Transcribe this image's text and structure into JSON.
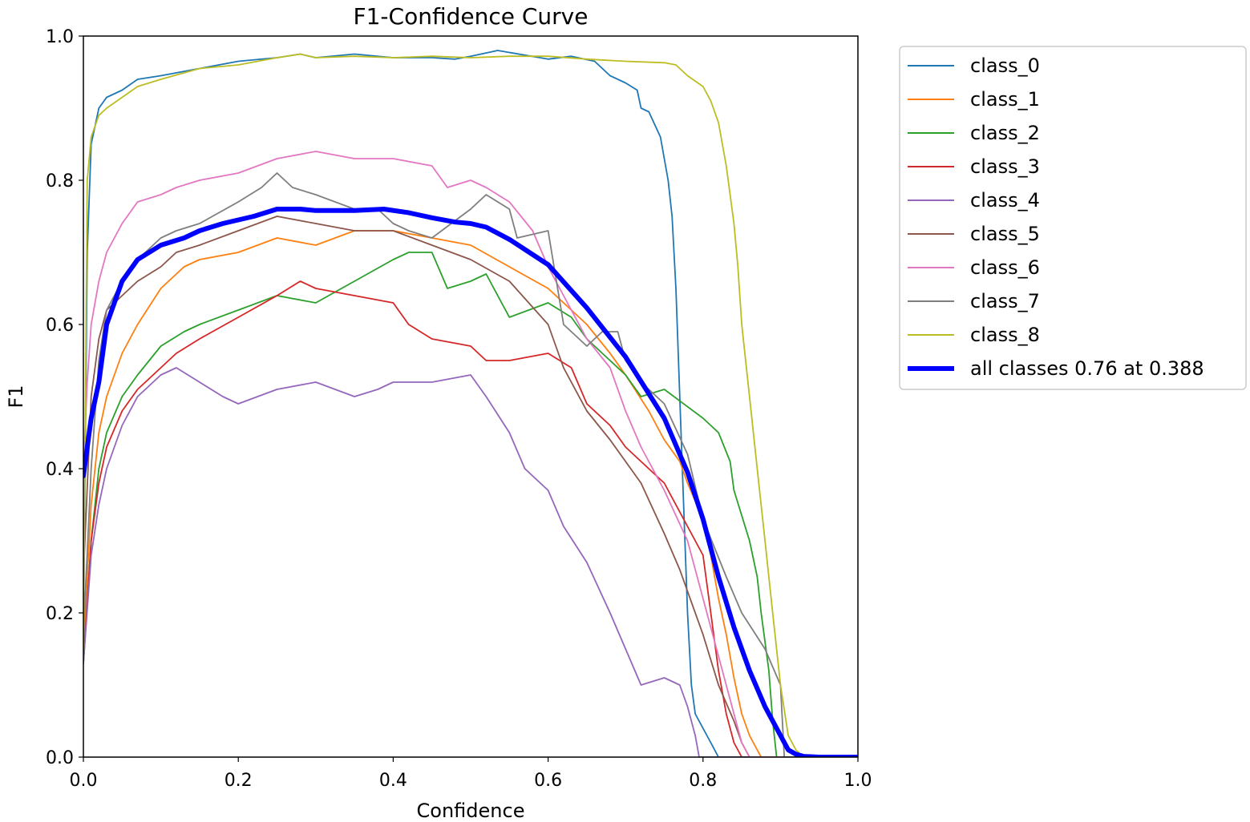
{
  "chart_data": {
    "type": "line",
    "title": "F1-Confidence Curve",
    "xlabel": "Confidence",
    "ylabel": "F1",
    "xlim": [
      0.0,
      1.0
    ],
    "ylim": [
      0.0,
      1.0
    ],
    "xticks": [
      "0.0",
      "0.2",
      "0.4",
      "0.6",
      "0.8",
      "1.0"
    ],
    "yticks": [
      "0.0",
      "0.2",
      "0.4",
      "0.6",
      "0.8",
      "1.0"
    ],
    "grid": false,
    "legend_position": "outside-right",
    "series": [
      {
        "name": "class_0",
        "color": "#1f77b4",
        "width": "thin",
        "x": [
          0,
          0.005,
          0.01,
          0.02,
          0.03,
          0.05,
          0.07,
          0.1,
          0.15,
          0.2,
          0.25,
          0.28,
          0.3,
          0.35,
          0.4,
          0.45,
          0.48,
          0.5,
          0.535,
          0.6,
          0.63,
          0.66,
          0.68,
          0.7,
          0.715,
          0.72,
          0.73,
          0.745,
          0.755,
          0.76,
          0.765,
          0.77,
          0.775,
          0.78,
          0.785,
          0.79,
          0.8,
          0.81,
          0.82,
          0.825,
          0.83,
          0.85,
          1.0
        ],
        "y": [
          0.16,
          0.7,
          0.85,
          0.9,
          0.915,
          0.925,
          0.94,
          0.945,
          0.955,
          0.965,
          0.97,
          0.975,
          0.97,
          0.975,
          0.97,
          0.97,
          0.968,
          0.972,
          0.98,
          0.968,
          0.972,
          0.965,
          0.945,
          0.935,
          0.925,
          0.9,
          0.895,
          0.86,
          0.8,
          0.75,
          0.65,
          0.5,
          0.35,
          0.2,
          0.1,
          0.06,
          0.04,
          0.02,
          0.0,
          0.0,
          0.0,
          0.0,
          0.0
        ]
      },
      {
        "name": "class_1",
        "color": "#ff7f0e",
        "width": "thin",
        "x": [
          0,
          0.01,
          0.02,
          0.03,
          0.05,
          0.07,
          0.1,
          0.13,
          0.15,
          0.2,
          0.25,
          0.3,
          0.35,
          0.4,
          0.45,
          0.5,
          0.55,
          0.6,
          0.63,
          0.65,
          0.68,
          0.7,
          0.73,
          0.75,
          0.77,
          0.78,
          0.8,
          0.81,
          0.82,
          0.83,
          0.84,
          0.85,
          0.86,
          0.87,
          0.875,
          1.0
        ],
        "y": [
          0.15,
          0.35,
          0.45,
          0.5,
          0.56,
          0.6,
          0.65,
          0.68,
          0.69,
          0.7,
          0.72,
          0.71,
          0.73,
          0.73,
          0.72,
          0.71,
          0.68,
          0.65,
          0.62,
          0.6,
          0.56,
          0.53,
          0.48,
          0.44,
          0.41,
          0.38,
          0.33,
          0.28,
          0.22,
          0.17,
          0.11,
          0.06,
          0.03,
          0.01,
          0.0,
          0.0
        ]
      },
      {
        "name": "class_2",
        "color": "#2ca02c",
        "width": "thin",
        "x": [
          0,
          0.01,
          0.02,
          0.03,
          0.05,
          0.07,
          0.1,
          0.13,
          0.15,
          0.2,
          0.25,
          0.3,
          0.35,
          0.4,
          0.42,
          0.45,
          0.47,
          0.5,
          0.52,
          0.55,
          0.6,
          0.63,
          0.65,
          0.68,
          0.7,
          0.72,
          0.75,
          0.8,
          0.82,
          0.835,
          0.84,
          0.86,
          0.87,
          0.875,
          0.885,
          0.89,
          0.895,
          1.0
        ],
        "y": [
          0.13,
          0.3,
          0.4,
          0.45,
          0.5,
          0.53,
          0.57,
          0.59,
          0.6,
          0.62,
          0.64,
          0.63,
          0.66,
          0.69,
          0.7,
          0.7,
          0.65,
          0.66,
          0.67,
          0.61,
          0.63,
          0.61,
          0.58,
          0.55,
          0.53,
          0.5,
          0.51,
          0.47,
          0.45,
          0.41,
          0.37,
          0.3,
          0.25,
          0.2,
          0.12,
          0.05,
          0.0,
          0.0
        ]
      },
      {
        "name": "class_3",
        "color": "#d62728",
        "width": "thin",
        "x": [
          0,
          0.01,
          0.02,
          0.03,
          0.05,
          0.07,
          0.1,
          0.12,
          0.15,
          0.2,
          0.25,
          0.28,
          0.3,
          0.35,
          0.4,
          0.42,
          0.45,
          0.5,
          0.52,
          0.55,
          0.6,
          0.63,
          0.65,
          0.68,
          0.7,
          0.72,
          0.75,
          0.77,
          0.8,
          0.81,
          0.82,
          0.83,
          0.84,
          0.85,
          1.0
        ],
        "y": [
          0.13,
          0.3,
          0.38,
          0.43,
          0.48,
          0.51,
          0.54,
          0.56,
          0.58,
          0.61,
          0.64,
          0.66,
          0.65,
          0.64,
          0.63,
          0.6,
          0.58,
          0.57,
          0.55,
          0.55,
          0.56,
          0.54,
          0.49,
          0.46,
          0.43,
          0.41,
          0.38,
          0.34,
          0.28,
          0.2,
          0.12,
          0.06,
          0.02,
          0.0,
          0.0
        ]
      },
      {
        "name": "class_4",
        "color": "#9467bd",
        "width": "thin",
        "x": [
          0,
          0.01,
          0.02,
          0.03,
          0.05,
          0.07,
          0.1,
          0.12,
          0.15,
          0.18,
          0.2,
          0.25,
          0.3,
          0.35,
          0.38,
          0.4,
          0.45,
          0.5,
          0.52,
          0.55,
          0.57,
          0.6,
          0.62,
          0.65,
          0.68,
          0.7,
          0.72,
          0.75,
          0.77,
          0.78,
          0.79,
          0.795,
          0.8,
          1.0
        ],
        "y": [
          0.13,
          0.28,
          0.35,
          0.4,
          0.46,
          0.5,
          0.53,
          0.54,
          0.52,
          0.5,
          0.49,
          0.51,
          0.52,
          0.5,
          0.51,
          0.52,
          0.52,
          0.53,
          0.5,
          0.45,
          0.4,
          0.37,
          0.32,
          0.27,
          0.2,
          0.15,
          0.1,
          0.11,
          0.1,
          0.07,
          0.03,
          0.0,
          0.0,
          0.0
        ]
      },
      {
        "name": "class_5",
        "color": "#8c564b",
        "width": "thin",
        "x": [
          0,
          0.01,
          0.02,
          0.03,
          0.05,
          0.07,
          0.1,
          0.12,
          0.15,
          0.2,
          0.25,
          0.3,
          0.35,
          0.4,
          0.45,
          0.5,
          0.55,
          0.6,
          0.62,
          0.65,
          0.68,
          0.7,
          0.72,
          0.75,
          0.77,
          0.8,
          0.82,
          0.84,
          0.85,
          0.86,
          1.0
        ],
        "y": [
          0.25,
          0.5,
          0.58,
          0.62,
          0.64,
          0.66,
          0.68,
          0.7,
          0.71,
          0.73,
          0.75,
          0.74,
          0.73,
          0.73,
          0.71,
          0.69,
          0.66,
          0.6,
          0.54,
          0.48,
          0.44,
          0.41,
          0.38,
          0.31,
          0.26,
          0.17,
          0.1,
          0.05,
          0.02,
          0.0,
          0.0
        ]
      },
      {
        "name": "class_6",
        "color": "#e377c2",
        "width": "thin",
        "x": [
          0,
          0.005,
          0.01,
          0.02,
          0.03,
          0.05,
          0.07,
          0.1,
          0.12,
          0.15,
          0.2,
          0.25,
          0.3,
          0.35,
          0.4,
          0.45,
          0.47,
          0.5,
          0.52,
          0.55,
          0.58,
          0.6,
          0.62,
          0.65,
          0.68,
          0.7,
          0.72,
          0.75,
          0.78,
          0.8,
          0.82,
          0.84,
          0.85,
          0.86,
          1.0
        ],
        "y": [
          0.4,
          0.52,
          0.6,
          0.66,
          0.7,
          0.74,
          0.77,
          0.78,
          0.79,
          0.8,
          0.81,
          0.83,
          0.84,
          0.83,
          0.83,
          0.82,
          0.79,
          0.8,
          0.79,
          0.77,
          0.73,
          0.68,
          0.64,
          0.58,
          0.54,
          0.48,
          0.43,
          0.37,
          0.3,
          0.22,
          0.14,
          0.06,
          0.02,
          0.0,
          0.0
        ]
      },
      {
        "name": "class_7",
        "color": "#7f7f7f",
        "width": "thin",
        "x": [
          0,
          0.01,
          0.02,
          0.03,
          0.05,
          0.07,
          0.1,
          0.12,
          0.15,
          0.2,
          0.23,
          0.25,
          0.27,
          0.3,
          0.35,
          0.38,
          0.4,
          0.42,
          0.45,
          0.5,
          0.52,
          0.55,
          0.56,
          0.6,
          0.62,
          0.65,
          0.67,
          0.69,
          0.7,
          0.72,
          0.75,
          0.78,
          0.8,
          0.83,
          0.85,
          0.88,
          0.9,
          0.905,
          1.0
        ],
        "y": [
          0.17,
          0.4,
          0.55,
          0.62,
          0.66,
          0.69,
          0.72,
          0.73,
          0.74,
          0.77,
          0.79,
          0.81,
          0.79,
          0.78,
          0.76,
          0.76,
          0.74,
          0.73,
          0.72,
          0.76,
          0.78,
          0.76,
          0.72,
          0.73,
          0.6,
          0.57,
          0.59,
          0.59,
          0.55,
          0.52,
          0.49,
          0.42,
          0.33,
          0.25,
          0.2,
          0.15,
          0.1,
          0.0,
          0.0
        ]
      },
      {
        "name": "class_8",
        "color": "#bcbd22",
        "width": "thin",
        "x": [
          0,
          0.005,
          0.01,
          0.02,
          0.03,
          0.05,
          0.07,
          0.1,
          0.15,
          0.2,
          0.25,
          0.28,
          0.3,
          0.35,
          0.4,
          0.45,
          0.5,
          0.55,
          0.6,
          0.65,
          0.7,
          0.75,
          0.765,
          0.78,
          0.8,
          0.81,
          0.82,
          0.83,
          0.835,
          0.84,
          0.845,
          0.85,
          0.86,
          0.87,
          0.88,
          0.89,
          0.9,
          0.91,
          0.915,
          0.92,
          0.925,
          0.93,
          1.0
        ],
        "y": [
          0.15,
          0.8,
          0.86,
          0.89,
          0.9,
          0.915,
          0.93,
          0.94,
          0.955,
          0.96,
          0.97,
          0.975,
          0.97,
          0.972,
          0.97,
          0.972,
          0.97,
          0.972,
          0.972,
          0.968,
          0.965,
          0.963,
          0.96,
          0.945,
          0.93,
          0.91,
          0.88,
          0.82,
          0.78,
          0.74,
          0.68,
          0.6,
          0.5,
          0.4,
          0.3,
          0.2,
          0.1,
          0.03,
          0.02,
          0.01,
          0.005,
          0.0,
          0.0
        ]
      },
      {
        "name": "all classes 0.76 at 0.388",
        "color": "#0000ff",
        "width": "thick",
        "x": [
          0,
          0.01,
          0.02,
          0.03,
          0.04,
          0.05,
          0.07,
          0.1,
          0.13,
          0.15,
          0.18,
          0.2,
          0.22,
          0.25,
          0.28,
          0.3,
          0.33,
          0.35,
          0.388,
          0.42,
          0.45,
          0.48,
          0.5,
          0.52,
          0.55,
          0.6,
          0.65,
          0.7,
          0.75,
          0.78,
          0.8,
          0.82,
          0.84,
          0.86,
          0.88,
          0.9,
          0.91,
          0.92,
          0.93,
          0.95,
          1.0
        ],
        "y": [
          0.39,
          0.47,
          0.52,
          0.6,
          0.63,
          0.66,
          0.69,
          0.71,
          0.72,
          0.73,
          0.74,
          0.745,
          0.75,
          0.76,
          0.76,
          0.758,
          0.758,
          0.758,
          0.76,
          0.755,
          0.748,
          0.742,
          0.74,
          0.735,
          0.718,
          0.683,
          0.623,
          0.555,
          0.47,
          0.395,
          0.33,
          0.25,
          0.18,
          0.12,
          0.07,
          0.03,
          0.01,
          0.004,
          0.001,
          0.0,
          0.0
        ]
      }
    ]
  }
}
